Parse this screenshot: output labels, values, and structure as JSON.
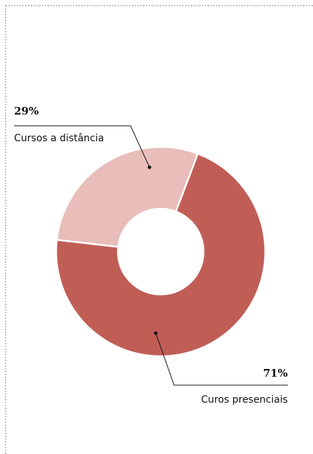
{
  "chart_data": {
    "type": "donut",
    "categories": [
      "Cursos a distância",
      "Curos presenciais"
    ],
    "values": [
      29,
      71
    ],
    "value_labels": [
      "29%",
      "71%"
    ],
    "colors": [
      "#e8bdba",
      "#c05e56"
    ]
  }
}
